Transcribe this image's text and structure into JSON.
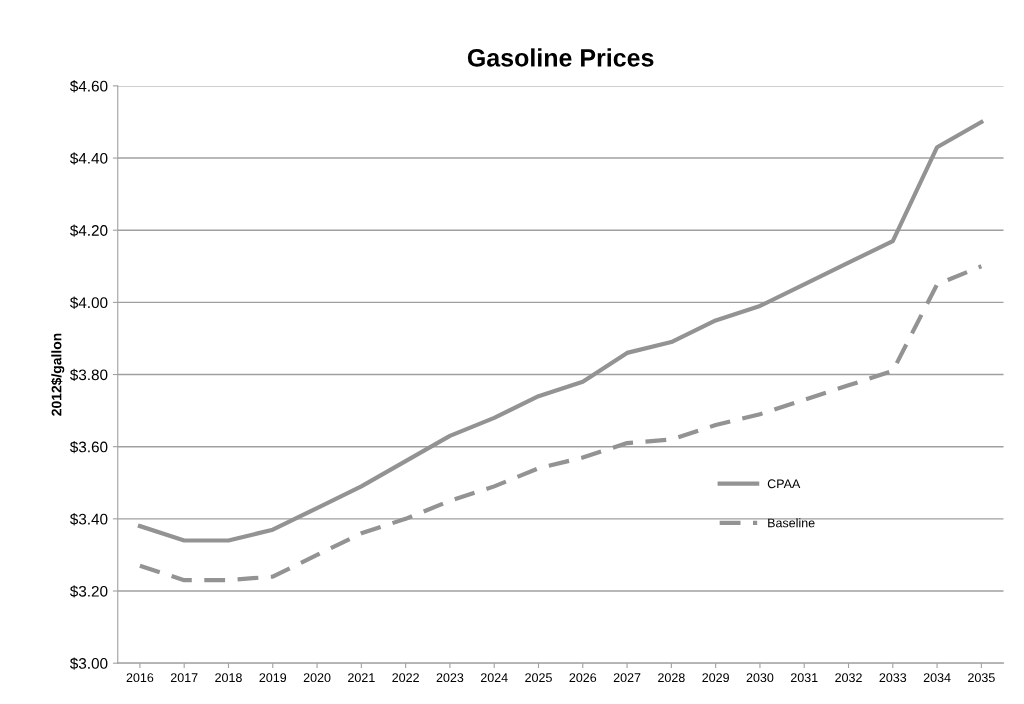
{
  "chart_data": {
    "type": "line",
    "title": "Gasoline Prices",
    "ylabel": "2012$/gallon",
    "categories": [
      "2016",
      "2017",
      "2018",
      "2019",
      "2020",
      "2021",
      "2022",
      "2023",
      "2024",
      "2025",
      "2026",
      "2027",
      "2028",
      "2029",
      "2030",
      "2031",
      "2032",
      "2033",
      "2034",
      "2035"
    ],
    "series": [
      {
        "name": "CPAA",
        "color": "#939393",
        "line_style": "solid",
        "values": [
          3.38,
          3.34,
          3.34,
          3.37,
          3.43,
          3.49,
          3.56,
          3.63,
          3.68,
          3.74,
          3.78,
          3.86,
          3.89,
          3.95,
          3.99,
          4.05,
          4.11,
          4.17,
          4.43,
          4.5
        ]
      },
      {
        "name": "Baseline",
        "color": "#939393",
        "line_style": "dashed",
        "values": [
          3.27,
          3.23,
          3.23,
          3.24,
          3.3,
          3.36,
          3.4,
          3.45,
          3.49,
          3.54,
          3.57,
          3.61,
          3.62,
          3.66,
          3.69,
          3.73,
          3.77,
          3.81,
          4.05,
          4.1
        ]
      }
    ],
    "ylim": [
      3.0,
      4.6
    ],
    "yticks": [
      {
        "value": 3.0,
        "label": "$3.00"
      },
      {
        "value": 3.2,
        "label": "$3.20"
      },
      {
        "value": 3.4,
        "label": "$3.40"
      },
      {
        "value": 3.6,
        "label": "$3.60"
      },
      {
        "value": 3.8,
        "label": "$3.80"
      },
      {
        "value": 4.0,
        "label": "$4.00"
      },
      {
        "value": 4.2,
        "label": "$4.20"
      },
      {
        "value": 4.4,
        "label": "$4.40"
      },
      {
        "value": 4.6,
        "label": "$4.60"
      }
    ],
    "grid": "y",
    "legend": "center right",
    "marker": "none"
  }
}
